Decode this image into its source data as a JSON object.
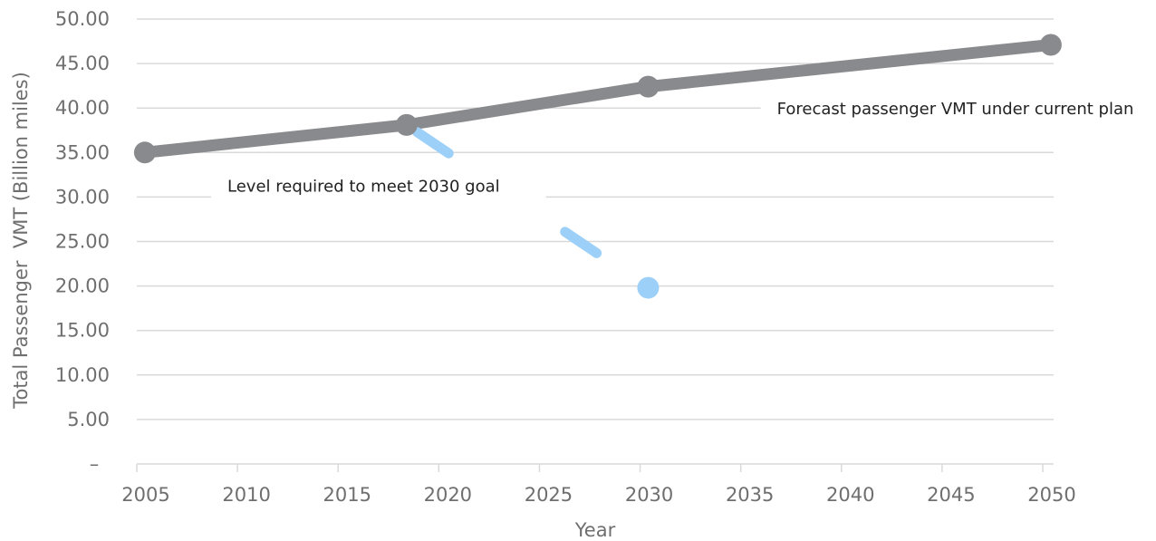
{
  "chart_data": {
    "type": "line",
    "title": "",
    "xlabel": "Year",
    "ylabel": "Total Passenger  VMT (Billion miles)",
    "xlim": [
      2005,
      2050
    ],
    "ylim": [
      0,
      50
    ],
    "x_ticks": [
      "2005",
      "2010",
      "2015",
      "2020",
      "2025",
      "2030",
      "2035",
      "2040",
      "2045",
      "2050"
    ],
    "y_ticks": [
      "–",
      "5.00",
      "10.00",
      "15.00",
      "20.00",
      "25.00",
      "30.00",
      "35.00",
      "40.00",
      "45.00",
      "50.00"
    ],
    "grid": true,
    "legend": "none",
    "series": [
      {
        "color": "#898a8d",
        "dash": "solid",
        "points": [
          {
            "x": 2005.4,
            "y": 35.0
          },
          {
            "x": 2018.4,
            "y": 38.1
          },
          {
            "x": 2030.4,
            "y": 42.4
          },
          {
            "x": 2050.4,
            "y": 47.1
          }
        ]
      },
      {
        "color": "#9dd0f8",
        "dash": "dashed",
        "points": [
          {
            "x": 2018.4,
            "y": 38.1
          },
          {
            "x": 2030.4,
            "y": 19.8
          }
        ]
      }
    ],
    "annotations": [
      {
        "text": "Forecast passenger VMT under current plan",
        "x": 2036.8,
        "y": 39.9
      },
      {
        "text": "Level required to meet 2030 goal",
        "x": 2009.5,
        "y": 31.2
      }
    ]
  }
}
